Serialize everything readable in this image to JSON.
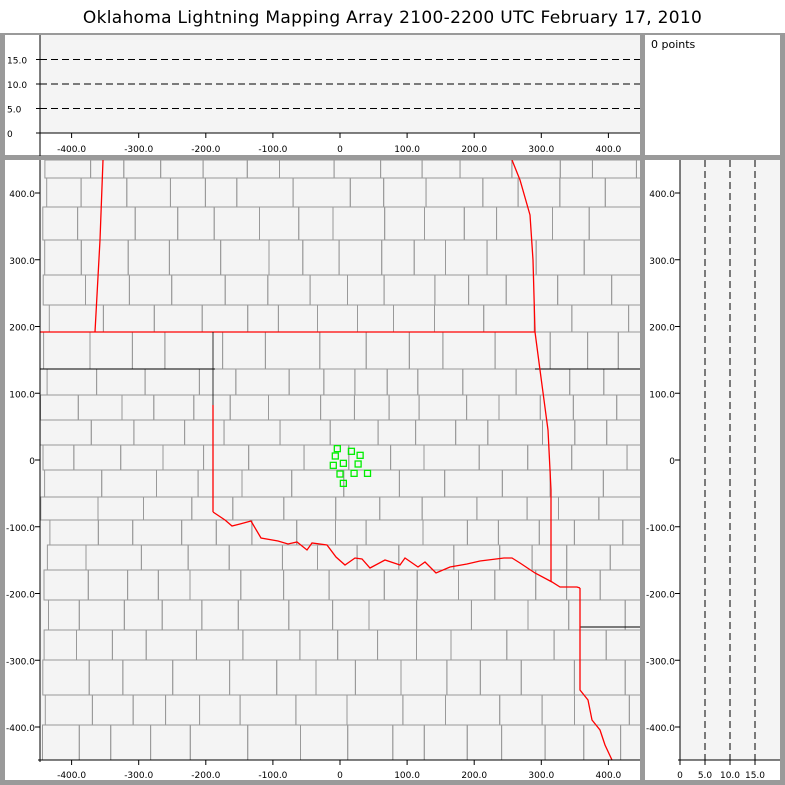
{
  "title": "Oklahoma Lightning Mapping Array   2100-2200 UTC  February 17, 2010",
  "points_label": "0 points",
  "colors": {
    "source_marker": "#00ee00",
    "state_border": "#ff0000",
    "county_border": "#999999",
    "plot_bg": "#f4f4f4",
    "frame": "#9a9a9a"
  },
  "chart_data": [
    {
      "type": "scatter",
      "name_role": "plan-view",
      "xlim": [
        -450,
        445
      ],
      "ylim": [
        -450,
        450
      ],
      "x_ticks": [
        "-400.0",
        "-300.0",
        "-200.0",
        "-100.0",
        "0",
        "100.0",
        "200.0",
        "300.0",
        "400.0"
      ],
      "y_ticks": [
        "400.0",
        "300.0",
        "200.0",
        "100.0",
        "0",
        "-100.0",
        "-200.0",
        "-300.0",
        "-400.0"
      ],
      "points": [
        {
          "x": -4,
          "y": 17
        },
        {
          "x": 17,
          "y": 13
        },
        {
          "x": 30,
          "y": 7
        },
        {
          "x": -7,
          "y": 6
        },
        {
          "x": 5,
          "y": -5
        },
        {
          "x": 27,
          "y": -6
        },
        {
          "x": -10,
          "y": -8
        },
        {
          "x": 0,
          "y": -21
        },
        {
          "x": 21,
          "y": -20
        },
        {
          "x": 41,
          "y": -20
        },
        {
          "x": 5,
          "y": -35
        }
      ]
    },
    {
      "type": "scatter",
      "name_role": "east-west altitude",
      "xlim": [
        -450,
        445
      ],
      "ylim": [
        0,
        20
      ],
      "y_ticks": [
        "15.0",
        "10.0",
        "5.0",
        "0"
      ],
      "x_ticks": [
        "-400.0",
        "-300.0",
        "-200.0",
        "-100.0",
        "0",
        "100.0",
        "200.0",
        "300.0",
        "400.0"
      ],
      "grid_dashed_at": [
        5,
        10,
        15
      ],
      "points": []
    },
    {
      "type": "scatter",
      "name_role": "north-south altitude",
      "xlim": [
        0,
        20
      ],
      "ylim": [
        -450,
        450
      ],
      "x_ticks": [
        "0",
        "5.0",
        "10.0",
        "15.0"
      ],
      "y_ticks": [
        "400.0",
        "300.0",
        "200.0",
        "100.0",
        "0",
        "-100.0",
        "-200.0",
        "-300.0",
        "-400.0"
      ],
      "grid_dashed_at": [
        5,
        10,
        15
      ],
      "points": []
    }
  ]
}
